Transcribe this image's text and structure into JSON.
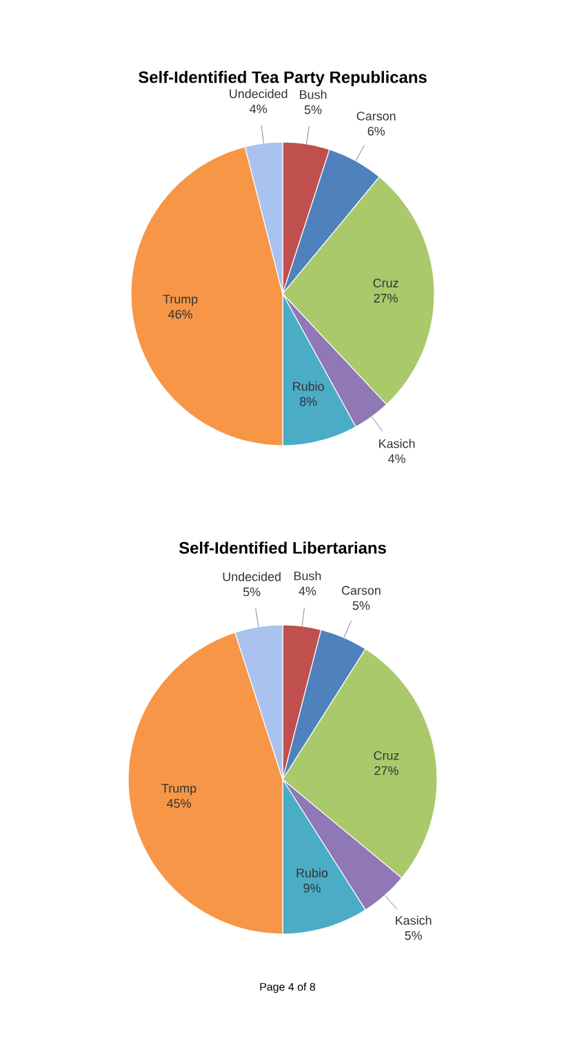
{
  "chart_data": [
    {
      "type": "pie",
      "title": "Self-Identified Tea Party Republicans",
      "categories": [
        "Bush",
        "Carson",
        "Cruz",
        "Kasich",
        "Rubio",
        "Trump",
        "Undecided"
      ],
      "values": [
        5,
        6,
        27,
        4,
        8,
        46,
        4
      ],
      "value_labels": [
        "5%",
        "6%",
        "27%",
        "4%",
        "8%",
        "46%",
        "4%"
      ],
      "colors": [
        "#c0504d",
        "#4f81bd",
        "#a9c96a",
        "#8f78b5",
        "#4bacc6",
        "#f79646",
        "#a9c2f0"
      ]
    },
    {
      "type": "pie",
      "title": "Self-Identified Libertarians",
      "categories": [
        "Bush",
        "Carson",
        "Cruz",
        "Kasich",
        "Rubio",
        "Trump",
        "Undecided"
      ],
      "values": [
        4,
        5,
        27,
        5,
        9,
        45,
        5
      ],
      "value_labels": [
        "4%",
        "5%",
        "27%",
        "5%",
        "9%",
        "45%",
        "5%"
      ],
      "colors": [
        "#c0504d",
        "#4f81bd",
        "#a9c96a",
        "#8f78b5",
        "#4bacc6",
        "#f79646",
        "#a9c2f0"
      ],
      "annotations": [
        "Page 4 of 8"
      ]
    }
  ]
}
